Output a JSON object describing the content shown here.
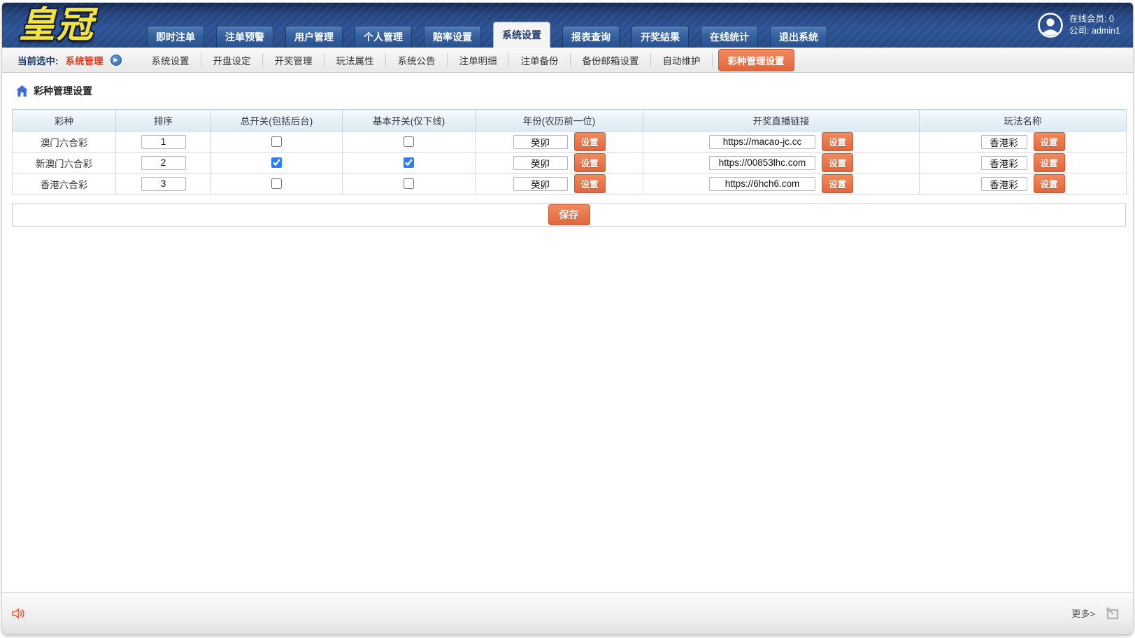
{
  "brand": {
    "logo_text": "皇冠"
  },
  "user_panel": {
    "online_label": "在线会员:",
    "online_value": "0",
    "company_label": "公司:",
    "company_value": "admin1"
  },
  "main_nav": {
    "tabs": [
      {
        "label": "即时注单",
        "active": false
      },
      {
        "label": "注单预警",
        "active": false
      },
      {
        "label": "用户管理",
        "active": false
      },
      {
        "label": "个人管理",
        "active": false
      },
      {
        "label": "赔率设置",
        "active": false
      },
      {
        "label": "系统设置",
        "active": true
      },
      {
        "label": "报表查询",
        "active": false
      },
      {
        "label": "开奖结果",
        "active": false
      },
      {
        "label": "在线统计",
        "active": false
      },
      {
        "label": "退出系统",
        "active": false
      }
    ]
  },
  "subnav": {
    "current_label": "当前选中:",
    "current_value": "系统管理",
    "arrow_glyph": "▶",
    "items": [
      {
        "label": "系统设置",
        "active": false
      },
      {
        "label": "开盘设定",
        "active": false
      },
      {
        "label": "开奖管理",
        "active": false
      },
      {
        "label": "玩法属性",
        "active": false
      },
      {
        "label": "系统公告",
        "active": false
      },
      {
        "label": "注单明细",
        "active": false
      },
      {
        "label": "注单备份",
        "active": false
      },
      {
        "label": "备份邮箱设置",
        "active": false
      },
      {
        "label": "自动维护",
        "active": false
      },
      {
        "label": "彩种管理设置",
        "active": true
      }
    ]
  },
  "page": {
    "title": "彩种管理设置"
  },
  "table": {
    "columns": [
      "彩种",
      "排序",
      "总开关(包括后台)",
      "基本开关(仅下线)",
      "年份(农历前一位)",
      "开奖直播链接",
      "玩法名称"
    ],
    "set_button_label": "设置",
    "rows": [
      {
        "lottery": "澳门六合彩",
        "sort": "1",
        "master_switch": false,
        "basic_switch": false,
        "year": "癸卯",
        "live_url": "https://macao-jc.cc",
        "play_name": "香港彩"
      },
      {
        "lottery": "新澳门六合彩",
        "sort": "2",
        "master_switch": true,
        "basic_switch": true,
        "year": "癸卯",
        "live_url": "https://00853lhc.com",
        "play_name": "香港彩"
      },
      {
        "lottery": "香港六合彩",
        "sort": "3",
        "master_switch": false,
        "basic_switch": false,
        "year": "癸卯",
        "live_url": "https://6hch6.com",
        "play_name": "香港彩"
      }
    ]
  },
  "save_button_label": "保存",
  "footer": {
    "more_label": "更多>"
  },
  "colors": {
    "accent_orange": "#e8714a",
    "nav_blue": "#2d5697",
    "header_navy": "#23437c",
    "current_red": "#e5391b",
    "checkbox_blue": "#2a7fff",
    "logo_yellow": "#f2e43c"
  }
}
